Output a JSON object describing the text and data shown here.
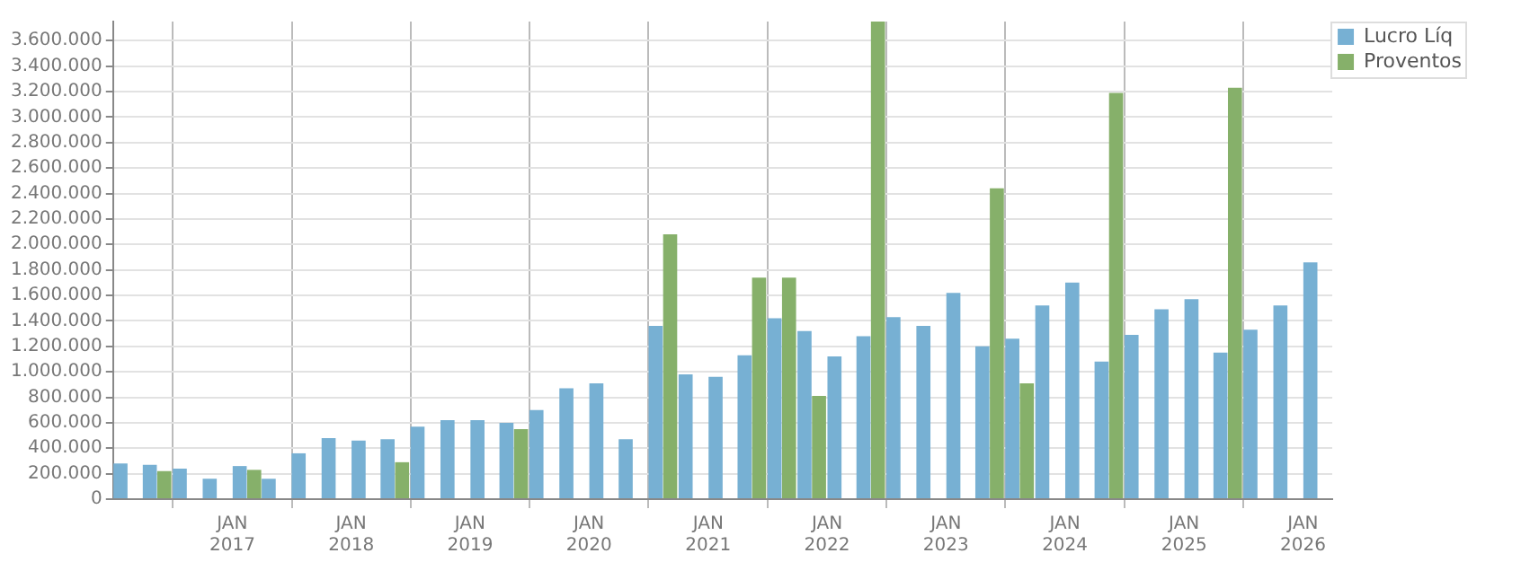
{
  "chart_data": {
    "type": "bar",
    "x": [
      "2016-02-15",
      "2016-05-15",
      "2016-08-15",
      "2016-11-15",
      "2017-02-15",
      "2017-05-15",
      "2017-08-15",
      "2017-11-15",
      "2018-02-15",
      "2018-05-15",
      "2018-08-15",
      "2018-11-15",
      "2019-02-15",
      "2019-05-15",
      "2019-08-15",
      "2019-11-15",
      "2020-02-15",
      "2020-05-15",
      "2020-08-15",
      "2020-11-15",
      "2021-02-15",
      "2021-05-15",
      "2021-08-15",
      "2021-11-15",
      "2022-02-15",
      "2022-05-15",
      "2022-08-15",
      "2022-11-15",
      "2023-02-15",
      "2023-05-15",
      "2023-08-15",
      "2023-11-15",
      "2024-02-15",
      "2024-05-15",
      "2024-08-15",
      "2024-11-15",
      "2025-02-15",
      "2025-05-15",
      "2025-08-15",
      "2025-11-15",
      "2026-02-15"
    ],
    "series": [
      {
        "name": "Lucro Líq",
        "color": "#77b0d3",
        "values": [
          280000,
          270000,
          240000,
          160000,
          260000,
          160000,
          360000,
          480000,
          460000,
          470000,
          570000,
          620000,
          620000,
          600000,
          700000,
          870000,
          910000,
          470000,
          1360000,
          980000,
          960000,
          1130000,
          1420000,
          1320000,
          1120000,
          1280000,
          1430000,
          1360000,
          1620000,
          1200000,
          1260000,
          1520000,
          1700000,
          1080000,
          1290000,
          1490000,
          1570000,
          1150000,
          1330000,
          1520000,
          1860000
        ]
      },
      {
        "name": "Proventos",
        "color": "#86b06a",
        "values": [
          null,
          220000,
          null,
          null,
          230000,
          null,
          null,
          null,
          null,
          290000,
          null,
          null,
          null,
          550000,
          null,
          null,
          null,
          null,
          2080000,
          null,
          null,
          1740000,
          1740000,
          810000,
          null,
          3750000,
          null,
          null,
          null,
          2440000,
          910000,
          null,
          null,
          3190000,
          null,
          null,
          null,
          3230000,
          null,
          null,
          null
        ]
      }
    ],
    "xlim": [
      "2016-01-01",
      "2026-04-01"
    ],
    "xticks": [
      {
        "value": "2017-01-01",
        "label": "JAN\n2017"
      },
      {
        "value": "2018-01-01",
        "label": "JAN\n2018"
      },
      {
        "value": "2019-01-01",
        "label": "JAN\n2019"
      },
      {
        "value": "2020-01-01",
        "label": "JAN\n2020"
      },
      {
        "value": "2021-01-01",
        "label": "JAN\n2021"
      },
      {
        "value": "2022-01-01",
        "label": "JAN\n2022"
      },
      {
        "value": "2023-01-01",
        "label": "JAN\n2023"
      },
      {
        "value": "2024-01-01",
        "label": "JAN\n2024"
      },
      {
        "value": "2025-01-01",
        "label": "JAN\n2025"
      },
      {
        "value": "2026-01-01",
        "label": "JAN\n2026"
      }
    ],
    "ylim": [
      0,
      3750000
    ],
    "yticks": [
      0,
      {
        "value": 200000,
        "label": "200.000"
      },
      {
        "value": 400000,
        "label": "400.000"
      },
      {
        "value": 600000,
        "label": "600.000"
      },
      {
        "value": 800000,
        "label": "800.000"
      },
      {
        "value": 1000000,
        "label": "1.000.000"
      },
      {
        "value": 1200000,
        "label": "1.200.000"
      },
      {
        "value": 1400000,
        "label": "1.400.000"
      },
      {
        "value": 1600000,
        "label": "1.600.000"
      },
      {
        "value": 1800000,
        "label": "1.800.000"
      },
      {
        "value": 2000000,
        "label": "2.000.000"
      },
      {
        "value": 2200000,
        "label": "2.200.000"
      },
      {
        "value": 2400000,
        "label": "2.400.000"
      },
      {
        "value": 2600000,
        "label": "2.600.000"
      },
      {
        "value": 2800000,
        "label": "2.800.000"
      },
      {
        "value": 3000000,
        "label": "3.000.000"
      },
      {
        "value": 3200000,
        "label": "3.200.000"
      },
      {
        "value": 3400000,
        "label": "3.400.000"
      },
      {
        "value": 3600000,
        "label": "3.600.000"
      }
    ],
    "grid": true,
    "legend": "top right"
  }
}
